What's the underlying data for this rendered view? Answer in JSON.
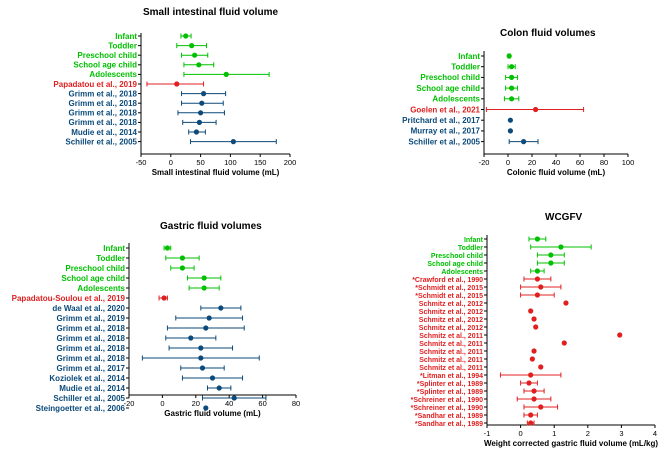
{
  "colors": {
    "green": "#00c000",
    "red": "#e02020",
    "blue": "#0b4a7a"
  },
  "chart_data": [
    {
      "type": "forest",
      "title": "Small intestinal fluid volume",
      "xlabel": "Small intestinal fluid volume (mL)",
      "xlim": [
        -50,
        200
      ],
      "xticks": [
        "-50",
        "0",
        "50",
        "100",
        "150",
        "200"
      ],
      "xtick_values": [
        -50,
        0,
        50,
        100,
        150,
        200
      ],
      "rows": [
        {
          "label": "Infant",
          "group": "green",
          "mean": 25,
          "lo": 17,
          "hi": 34
        },
        {
          "label": "Toddler",
          "group": "green",
          "mean": 35,
          "lo": 10,
          "hi": 60
        },
        {
          "label": "Preschool child",
          "group": "green",
          "mean": 40,
          "lo": 18,
          "hi": 62
        },
        {
          "label": "School age child",
          "group": "green",
          "mean": 47,
          "lo": 22,
          "hi": 72
        },
        {
          "label": "Adolescents",
          "group": "green",
          "mean": 93,
          "lo": 22,
          "hi": 165
        },
        {
          "label": "Papadatou et al., 2019",
          "group": "red",
          "mean": 10,
          "lo": -40,
          "hi": 55
        },
        {
          "label": "Grimm et al., 2018",
          "group": "blue",
          "mean": 55,
          "lo": 18,
          "hi": 92
        },
        {
          "label": "Grimm et al., 2018",
          "group": "blue",
          "mean": 52,
          "lo": 18,
          "hi": 88
        },
        {
          "label": "Grimm et al., 2018",
          "group": "blue",
          "mean": 50,
          "lo": 12,
          "hi": 90
        },
        {
          "label": "Grimm et al., 2018",
          "group": "blue",
          "mean": 48,
          "lo": 20,
          "hi": 76
        },
        {
          "label": "Mudie et al., 2014",
          "group": "blue",
          "mean": 43,
          "lo": 30,
          "hi": 58
        },
        {
          "label": "Schiller et al., 2005",
          "group": "blue",
          "mean": 105,
          "lo": 33,
          "hi": 177
        }
      ]
    },
    {
      "type": "forest",
      "title": "Colon fluid volumes",
      "xlabel": "Colonic fluid volume (mL)",
      "xlim": [
        -20,
        100
      ],
      "xticks": [
        "-20",
        "0",
        "20",
        "40",
        "60",
        "80",
        "100"
      ],
      "xtick_values": [
        -20,
        0,
        20,
        40,
        60,
        80,
        100
      ],
      "rows": [
        {
          "label": "Infant",
          "group": "green",
          "mean": 1,
          "lo": 0,
          "hi": 2
        },
        {
          "label": "Toddler",
          "group": "green",
          "mean": 3,
          "lo": 0,
          "hi": 6
        },
        {
          "label": "Preschool child",
          "group": "green",
          "mean": 3,
          "lo": -2,
          "hi": 8
        },
        {
          "label": "School age child",
          "group": "green",
          "mean": 3,
          "lo": -2,
          "hi": 8
        },
        {
          "label": "Adolescents",
          "group": "green",
          "mean": 3,
          "lo": -3,
          "hi": 9
        },
        {
          "label": "Goelen et al., 2021",
          "group": "red",
          "mean": 23,
          "lo": -18,
          "hi": 63
        },
        {
          "label": "Pritchard et al., 2017",
          "group": "blue",
          "mean": 2,
          "lo": 2,
          "hi": 2
        },
        {
          "label": "Murray et al., 2017",
          "group": "blue",
          "mean": 2,
          "lo": 2,
          "hi": 2
        },
        {
          "label": "Schiller et al., 2005",
          "group": "blue",
          "mean": 13,
          "lo": 1,
          "hi": 25
        }
      ]
    },
    {
      "type": "forest",
      "title": "Gastric fluid volumes",
      "xlabel": "Gastric fluid volume (mL)",
      "xlim": [
        -20,
        80
      ],
      "xticks": [
        "-20",
        "0",
        "20",
        "40",
        "60",
        "80"
      ],
      "xtick_values": [
        -20,
        0,
        20,
        40,
        60,
        80
      ],
      "rows": [
        {
          "label": "Infant",
          "group": "green",
          "mean": 3,
          "lo": 1,
          "hi": 5
        },
        {
          "label": "Toddler",
          "group": "green",
          "mean": 12,
          "lo": 2,
          "hi": 22
        },
        {
          "label": "Preschool child",
          "group": "green",
          "mean": 12,
          "lo": 5,
          "hi": 19
        },
        {
          "label": "School age child",
          "group": "green",
          "mean": 25,
          "lo": 15,
          "hi": 35
        },
        {
          "label": "Adolescents",
          "group": "green",
          "mean": 25,
          "lo": 16,
          "hi": 34
        },
        {
          "label": "Papadatou-Soulou et al., 2019",
          "group": "red",
          "mean": 1,
          "lo": -2,
          "hi": 3
        },
        {
          "label": "de Waal et al., 2020",
          "group": "blue",
          "mean": 35,
          "lo": 23,
          "hi": 47
        },
        {
          "label": "Grimm et al., 2019",
          "group": "blue",
          "mean": 28,
          "lo": 8,
          "hi": 48
        },
        {
          "label": "Grimm et al., 2018",
          "group": "blue",
          "mean": 26,
          "lo": 3,
          "hi": 49
        },
        {
          "label": "Grimm et al., 2018",
          "group": "blue",
          "mean": 17,
          "lo": 2,
          "hi": 32
        },
        {
          "label": "Grimm et al., 2018",
          "group": "blue",
          "mean": 23,
          "lo": 4,
          "hi": 42
        },
        {
          "label": "Grimm et al., 2018",
          "group": "blue",
          "mean": 23,
          "lo": -12,
          "hi": 58
        },
        {
          "label": "Grimm et al., 2017",
          "group": "blue",
          "mean": 24,
          "lo": 11,
          "hi": 37
        },
        {
          "label": "Koziolek et al., 2014",
          "group": "blue",
          "mean": 30,
          "lo": 12,
          "hi": 48
        },
        {
          "label": "Mudie et al., 2014",
          "group": "blue",
          "mean": 34,
          "lo": 27,
          "hi": 41
        },
        {
          "label": "Schiller et al., 2005",
          "group": "blue",
          "mean": 43,
          "lo": 24,
          "hi": 62
        },
        {
          "label": "Steingoetter et al., 2006",
          "group": "blue",
          "mean": 26,
          "lo": 26,
          "hi": 26
        }
      ]
    },
    {
      "type": "forest",
      "title": "WCGFV",
      "xlabel": "Weight corrected gastric fluid volume (mL/kg)",
      "xlim": [
        -1,
        4
      ],
      "xticks": [
        "-1",
        "0",
        "1",
        "2",
        "3",
        "4"
      ],
      "xtick_values": [
        -1,
        0,
        1,
        2,
        3,
        4
      ],
      "rows": [
        {
          "label": "Infant",
          "group": "green",
          "mean": 0.5,
          "lo": 0.25,
          "hi": 0.75
        },
        {
          "label": "Toddler",
          "group": "green",
          "mean": 1.2,
          "lo": 0.3,
          "hi": 2.1
        },
        {
          "label": "Preschool child",
          "group": "green",
          "mean": 0.9,
          "lo": 0.5,
          "hi": 1.3
        },
        {
          "label": "School age child",
          "group": "green",
          "mean": 0.9,
          "lo": 0.5,
          "hi": 1.3
        },
        {
          "label": "Adolescents",
          "group": "green",
          "mean": 0.5,
          "lo": 0.3,
          "hi": 0.7
        },
        {
          "label": "*Crawford et al., 1990",
          "group": "red",
          "mean": 0.5,
          "lo": 0.1,
          "hi": 0.9
        },
        {
          "label": "*Schmidt et al., 2015",
          "group": "red",
          "mean": 0.6,
          "lo": 0.0,
          "hi": 1.2
        },
        {
          "label": "*Schmidt et al., 2015",
          "group": "red",
          "mean": 0.5,
          "lo": 0.0,
          "hi": 1.0
        },
        {
          "label": "Schmitz et al., 2012",
          "group": "red",
          "mean": 1.35,
          "lo": 1.35,
          "hi": 1.35
        },
        {
          "label": "Schmitz et al., 2012",
          "group": "red",
          "mean": 0.3,
          "lo": 0.3,
          "hi": 0.3
        },
        {
          "label": "Schmitz et al., 2012",
          "group": "red",
          "mean": 0.4,
          "lo": 0.4,
          "hi": 0.4
        },
        {
          "label": "Schmitz et al., 2012",
          "group": "red",
          "mean": 0.45,
          "lo": 0.45,
          "hi": 0.45
        },
        {
          "label": "Schmitz et al., 2011",
          "group": "red",
          "mean": 2.95,
          "lo": 2.95,
          "hi": 2.95
        },
        {
          "label": "Schmitz et al., 2011",
          "group": "red",
          "mean": 1.3,
          "lo": 1.3,
          "hi": 1.3
        },
        {
          "label": "Schmitz et al., 2011",
          "group": "red",
          "mean": 0.4,
          "lo": 0.4,
          "hi": 0.4
        },
        {
          "label": "Schmitz et al., 2011",
          "group": "red",
          "mean": 0.35,
          "lo": 0.35,
          "hi": 0.35
        },
        {
          "label": "Schmitz et al., 2011",
          "group": "red",
          "mean": 0.6,
          "lo": 0.6,
          "hi": 0.6
        },
        {
          "label": "*Litman et al., 1994",
          "group": "red",
          "mean": 0.3,
          "lo": -0.6,
          "hi": 1.2
        },
        {
          "label": "*Splinter et al., 1989",
          "group": "red",
          "mean": 0.25,
          "lo": 0.0,
          "hi": 0.5
        },
        {
          "label": "*Splinter et al., 1989",
          "group": "red",
          "mean": 0.4,
          "lo": 0.1,
          "hi": 0.7
        },
        {
          "label": "*Schreiner et al., 1990",
          "group": "red",
          "mean": 0.4,
          "lo": -0.1,
          "hi": 0.9
        },
        {
          "label": "*Schreiner et al., 1990",
          "group": "red",
          "mean": 0.6,
          "lo": 0.1,
          "hi": 1.1
        },
        {
          "label": "*Sandhar et al., 1989",
          "group": "red",
          "mean": 0.3,
          "lo": 0.1,
          "hi": 0.5
        },
        {
          "label": "*Sandhar et al., 1989",
          "group": "red",
          "mean": 0.3,
          "lo": 0.2,
          "hi": 0.4
        }
      ]
    }
  ]
}
